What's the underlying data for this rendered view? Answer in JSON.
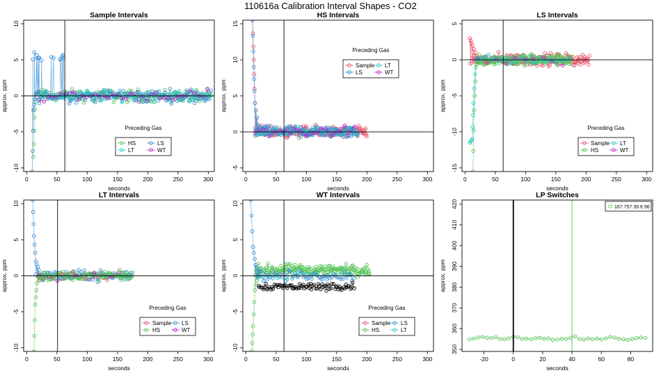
{
  "figure_title": "110616a   Calibration Interval Shapes - CO2",
  "colors": {
    "Sample": "#e8506a",
    "HS": "#55c257",
    "LS": "#3a8fd4",
    "LT": "#25c9c4",
    "WT": "#c023c8",
    "LP": "#55c257",
    "refline": "#000000"
  },
  "chart_data": [
    {
      "type": "scatter",
      "title": "Sample Intervals",
      "xlabel": "seconds",
      "ylabel": "approx. ppm",
      "xlim": [
        -5,
        310
      ],
      "ylim": [
        -10.5,
        10.5
      ],
      "xticks": [
        0,
        50,
        100,
        150,
        200,
        250,
        300
      ],
      "yticks": [
        -10,
        -5,
        0,
        5,
        10
      ],
      "vline": 63,
      "hline": 0,
      "legend": {
        "title": "Preceding Gas",
        "entries": [
          "HS",
          "LS",
          "LT",
          "WT"
        ],
        "columns": 2,
        "position": "bottom-center"
      },
      "series": [
        {
          "name": "HS",
          "decay": [
            [
              11,
              -8.5
            ],
            [
              13,
              -3
            ],
            [
              15,
              0.3
            ],
            [
              20,
              0.5
            ]
          ],
          "range": [
            18,
            305
          ],
          "noise": 1.0,
          "count": 150
        },
        {
          "name": "LS",
          "decay": [
            [
              9,
              -10.5
            ],
            [
              11,
              -2
            ],
            [
              15,
              0.3
            ]
          ],
          "hump": {
            "range": [
              5,
              62
            ],
            "value": 5.2
          },
          "range": [
            15,
            305
          ],
          "noise": 1.0,
          "count": 160
        },
        {
          "name": "LT",
          "range": [
            20,
            305
          ],
          "noise": 0.9,
          "count": 90
        },
        {
          "name": "WT",
          "range": [
            20,
            305
          ],
          "noise": 0.9,
          "count": 40
        }
      ]
    },
    {
      "type": "scatter",
      "title": "HS Intervals",
      "xlabel": "seconds",
      "ylabel": "approx. ppm",
      "xlim": [
        -5,
        310
      ],
      "ylim": [
        -5.5,
        15.5
      ],
      "xticks": [
        0,
        50,
        100,
        150,
        200,
        250,
        300
      ],
      "yticks": [
        -5,
        0,
        5,
        10,
        15
      ],
      "vline": 63,
      "hline": 0,
      "legend": {
        "title": "Preceding Gas",
        "entries": [
          "Sample",
          "LT",
          "LS",
          "WT"
        ],
        "columns": 2,
        "position": "top-center"
      },
      "series": [
        {
          "name": "Sample",
          "decay": [
            [
              11,
              15.5
            ],
            [
              13,
              10
            ],
            [
              15,
              4
            ],
            [
              20,
              1
            ],
            [
              30,
              0.3
            ]
          ],
          "range": [
            15,
            200
          ],
          "noise": 0.9,
          "count": 170
        },
        {
          "name": "LS",
          "decay": [
            [
              11,
              15.5
            ],
            [
              13,
              9
            ],
            [
              15,
              4
            ],
            [
              20,
              1
            ],
            [
              30,
              0.3
            ]
          ],
          "range": [
            15,
            185
          ],
          "noise": 0.9,
          "count": 170
        },
        {
          "name": "LT",
          "range": [
            15,
            185
          ],
          "noise": 0.8,
          "count": 50
        },
        {
          "name": "WT",
          "range": [
            15,
            185
          ],
          "noise": 0.8,
          "count": 30
        }
      ]
    },
    {
      "type": "scatter",
      "title": "LS Intervals",
      "xlabel": "seconds",
      "ylabel": "approx. ppm",
      "xlim": [
        -5,
        310
      ],
      "ylim": [
        -15.5,
        5.5
      ],
      "xticks": [
        0,
        50,
        100,
        150,
        200,
        250,
        300
      ],
      "yticks": [
        -15,
        -10,
        -5,
        0,
        5
      ],
      "vline": 63,
      "hline": 0,
      "legend": {
        "title": "Preceding Gas",
        "entries": [
          "Sample",
          "LT",
          "HS",
          "WT"
        ],
        "columns": 2,
        "position": "bottom-right"
      },
      "series": [
        {
          "name": "Sample",
          "decay": [
            [
              8,
              3
            ],
            [
              12,
              2
            ],
            [
              20,
              0.5
            ]
          ],
          "range": [
            8,
            205
          ],
          "noise": 1.0,
          "count": 170
        },
        {
          "name": "HS",
          "decay": [
            [
              13,
              -15.5
            ],
            [
              15,
              -7
            ],
            [
              18,
              -1
            ],
            [
              22,
              0
            ]
          ],
          "range": [
            18,
            175
          ],
          "noise": 0.9,
          "count": 170
        },
        {
          "name": "LT",
          "decay": [
            [
              8,
              -11.5
            ],
            [
              12,
              -11
            ],
            [
              14,
              -6
            ],
            [
              18,
              0
            ]
          ],
          "range": [
            18,
            175
          ],
          "noise": 0.8,
          "count": 40
        },
        {
          "name": "WT",
          "range": [
            20,
            175
          ],
          "noise": 0.8,
          "count": 10
        }
      ]
    },
    {
      "type": "scatter",
      "title": "LT Intervals",
      "xlabel": "seconds",
      "ylabel": "approx. ppm",
      "xlim": [
        -5,
        310
      ],
      "ylim": [
        -10.5,
        10.5
      ],
      "xticks": [
        0,
        50,
        100,
        150,
        200,
        250,
        300
      ],
      "yticks": [
        -10,
        -5,
        0,
        5,
        10
      ],
      "vline": 51,
      "hline": 0,
      "legend": {
        "title": "Preceding Gas",
        "entries": [
          "Sample",
          "LS",
          "HS",
          "WT"
        ],
        "columns": 2,
        "position": "bottom-right"
      },
      "series": [
        {
          "name": "LS",
          "decay": [
            [
              10,
              10.5
            ],
            [
              12,
              5.5
            ],
            [
              15,
              2
            ],
            [
              20,
              0.8
            ]
          ],
          "range": [
            15,
            175
          ],
          "noise": 0.8,
          "count": 110
        },
        {
          "name": "HS",
          "decay": [
            [
              12,
              -10.5
            ],
            [
              14,
              -4
            ],
            [
              17,
              -1
            ],
            [
              25,
              0
            ]
          ],
          "range": [
            17,
            175
          ],
          "noise": 0.8,
          "count": 100
        },
        {
          "name": "Sample",
          "range": [
            20,
            170
          ],
          "noise": 0.8,
          "count": 8
        },
        {
          "name": "WT",
          "range": [
            20,
            170
          ],
          "noise": 0.8,
          "count": 5
        }
      ]
    },
    {
      "type": "scatter",
      "title": "WT Intervals",
      "xlabel": "seconds",
      "ylabel": "approx. ppm",
      "xlim": [
        -5,
        310
      ],
      "ylim": [
        -10.5,
        10.5
      ],
      "xticks": [
        0,
        50,
        100,
        150,
        200,
        250,
        300
      ],
      "yticks": [
        -10,
        -5,
        0,
        5,
        10
      ],
      "vline": 63,
      "hline": 0,
      "legend": {
        "title": "Preceding Gas",
        "entries": [
          "Sample",
          "LS",
          "HS",
          "LT"
        ],
        "columns": 2,
        "position": "bottom-right"
      },
      "series": [
        {
          "name": "HS",
          "decay": [
            [
              10,
              -10.5
            ],
            [
              12,
              -7
            ],
            [
              15,
              -2
            ],
            [
              20,
              0
            ]
          ],
          "range": [
            15,
            205
          ],
          "noise": 0.9,
          "offset": 0.8,
          "count": 170
        },
        {
          "name": "LS",
          "decay": [
            [
              8,
              10.5
            ],
            [
              12,
              4
            ],
            [
              16,
              1.5
            ],
            [
              22,
              0.5
            ]
          ],
          "range": [
            15,
            180
          ],
          "noise": 0.8,
          "count": 60
        },
        {
          "name": "Sample",
          "range": [
            20,
            180
          ],
          "noise": 0.6,
          "offset": -1.5,
          "color_override": "#000000",
          "count": 80
        },
        {
          "name": "LT",
          "range": [
            20,
            180
          ],
          "noise": 0.6,
          "count": 10
        }
      ]
    },
    {
      "type": "scatter",
      "title": "LP Switches",
      "xlabel": "seconds",
      "ylabel": "approx. ppm",
      "xlim": [
        -35,
        95
      ],
      "ylim": [
        349,
        422
      ],
      "xticks": [
        -20,
        0,
        20,
        40,
        60,
        80
      ],
      "yticks": [
        350,
        360,
        370,
        380,
        390,
        400,
        410,
        420
      ],
      "vline": 0,
      "vline_bold": true,
      "vline2": 40,
      "hline": null,
      "legend": {
        "title": "",
        "entries": [
          "167.757 39.6 96"
        ],
        "columns": 1,
        "position": "top-right"
      },
      "series": [
        {
          "name": "LP",
          "points": [
            [
              -30,
              354.8
            ],
            [
              -27,
              355.2
            ],
            [
              -24,
              355.8
            ],
            [
              -21,
              356.0
            ],
            [
              -18,
              355.6
            ],
            [
              -15,
              355.5
            ],
            [
              -12,
              355.9
            ],
            [
              -9,
              355.0
            ],
            [
              -6,
              354.9
            ],
            [
              -3,
              355.3
            ],
            [
              0,
              356.2
            ],
            [
              3,
              355.8
            ],
            [
              6,
              355.0
            ],
            [
              9,
              355.2
            ],
            [
              12,
              354.9
            ],
            [
              15,
              355.4
            ],
            [
              18,
              355.6
            ],
            [
              21,
              355.1
            ],
            [
              24,
              355.3
            ],
            [
              27,
              354.6
            ],
            [
              30,
              354.8
            ],
            [
              33,
              355.1
            ],
            [
              36,
              355.0
            ],
            [
              39,
              355.6
            ],
            [
              42,
              356.3
            ],
            [
              45,
              355.0
            ],
            [
              48,
              354.7
            ],
            [
              51,
              355.3
            ],
            [
              54,
              354.9
            ],
            [
              57,
              355.2
            ],
            [
              60,
              354.8
            ],
            [
              63,
              355.3
            ],
            [
              66,
              356.0
            ],
            [
              69,
              355.7
            ],
            [
              72,
              355.1
            ],
            [
              75,
              354.9
            ],
            [
              78,
              354.6
            ],
            [
              81,
              355.0
            ],
            [
              84,
              355.4
            ],
            [
              87,
              355.7
            ],
            [
              90,
              355.5
            ]
          ]
        }
      ]
    }
  ]
}
